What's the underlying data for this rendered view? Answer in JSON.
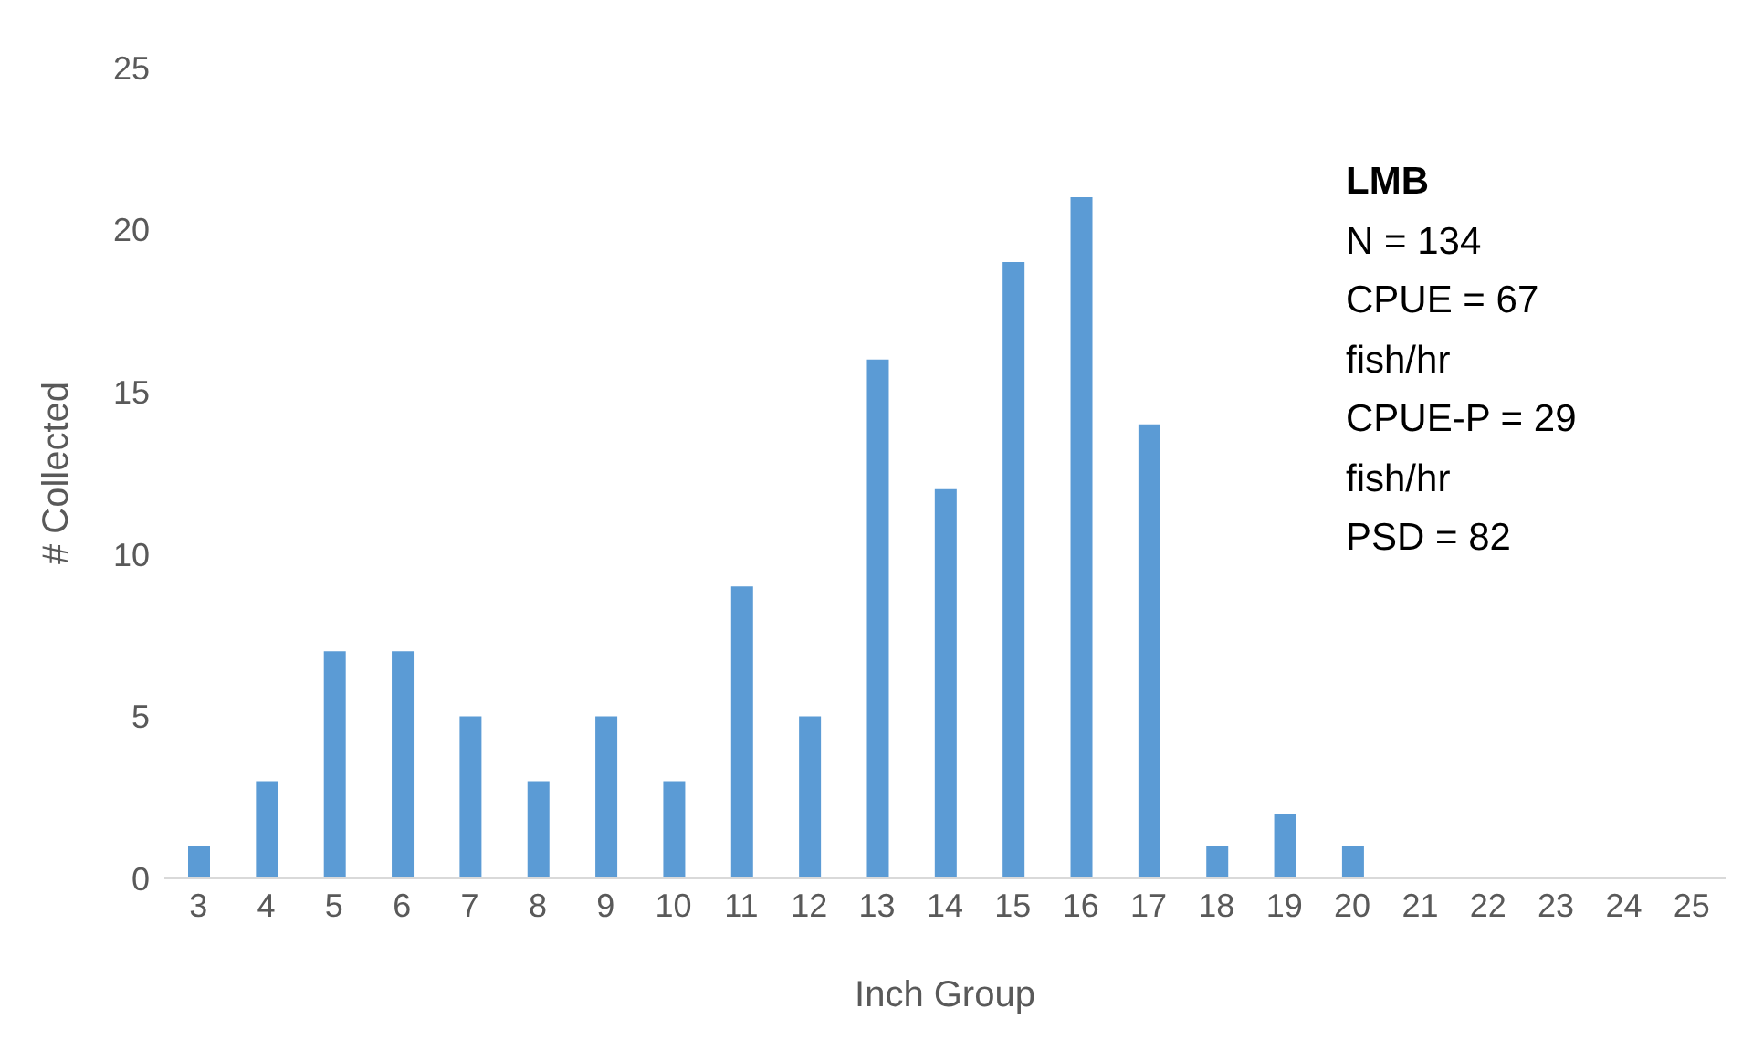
{
  "chart_data": {
    "type": "bar",
    "xlabel": "Inch Group",
    "ylabel": "# Collected",
    "categories": [
      "3",
      "4",
      "5",
      "6",
      "7",
      "8",
      "9",
      "10",
      "11",
      "12",
      "13",
      "14",
      "15",
      "16",
      "17",
      "18",
      "19",
      "20",
      "21",
      "22",
      "23",
      "24",
      "25"
    ],
    "values": [
      1,
      3,
      7,
      7,
      5,
      3,
      5,
      3,
      9,
      5,
      16,
      12,
      19,
      21,
      14,
      1,
      2,
      1,
      0,
      0,
      0,
      0,
      0
    ],
    "color": "#5b9bd5",
    "ylim": [
      0,
      25
    ],
    "yticks": [
      0,
      5,
      10,
      15,
      20,
      25
    ],
    "grid": false,
    "annotations": [
      "LMB",
      "N = 134",
      "CPUE = 67",
      "fish/hr",
      "CPUE-P = 29",
      "fish/hr",
      "PSD = 82"
    ]
  }
}
